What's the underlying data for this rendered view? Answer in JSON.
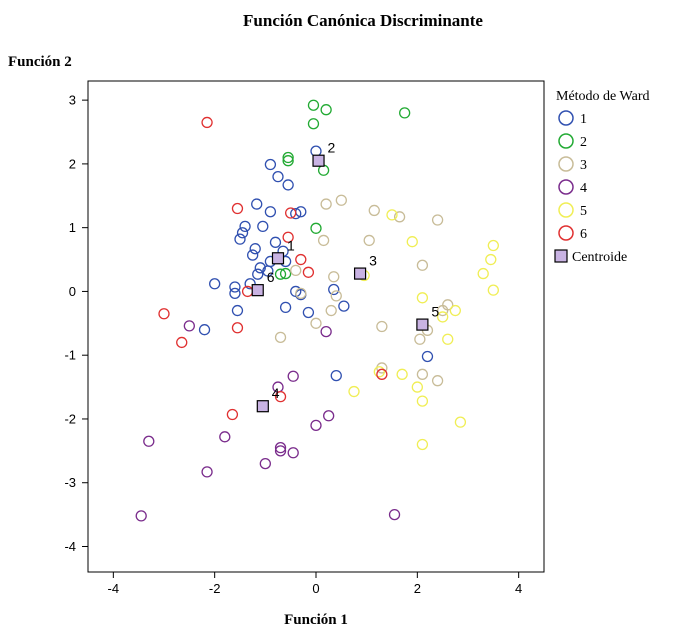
{
  "chart_data": {
    "type": "scatter",
    "title": "Función Canónica  Discriminante",
    "xlabel": "Función 1",
    "ylabel": "Función 2",
    "xlim": [
      -4.5,
      4.5
    ],
    "ylim": [
      -4.4,
      3.3
    ],
    "xticks": [
      -4,
      -2,
      0,
      2,
      4
    ],
    "yticks": [
      3,
      2,
      1,
      0,
      -1,
      -2,
      -3,
      -4
    ],
    "grid": false,
    "legend_title": "Método de Ward",
    "legend_position": "right",
    "series": [
      {
        "name": "1",
        "color": "#3050b0",
        "points": [
          [
            0.0,
            2.2
          ],
          [
            -0.9,
            1.99
          ],
          [
            -0.75,
            1.8
          ],
          [
            -0.55,
            1.67
          ],
          [
            -1.17,
            1.37
          ],
          [
            -0.9,
            1.25
          ],
          [
            -0.3,
            1.25
          ],
          [
            -0.4,
            1.22
          ],
          [
            -1.4,
            1.02
          ],
          [
            -1.05,
            1.02
          ],
          [
            -1.45,
            0.92
          ],
          [
            -1.5,
            0.82
          ],
          [
            -0.8,
            0.77
          ],
          [
            -0.65,
            0.63
          ],
          [
            -1.2,
            0.67
          ],
          [
            -1.25,
            0.57
          ],
          [
            -0.9,
            0.47
          ],
          [
            -0.6,
            0.47
          ],
          [
            -1.1,
            0.37
          ],
          [
            -0.95,
            0.32
          ],
          [
            -1.3,
            0.12
          ],
          [
            -1.15,
            0.27
          ],
          [
            -1.6,
            0.07
          ],
          [
            -1.6,
            -0.03
          ],
          [
            -2.0,
            0.12
          ],
          [
            -0.4,
            0.0
          ],
          [
            -0.3,
            -0.05
          ],
          [
            0.35,
            0.03
          ],
          [
            -0.6,
            -0.25
          ],
          [
            -0.15,
            -0.33
          ],
          [
            -1.55,
            -0.3
          ],
          [
            -2.2,
            -0.6
          ],
          [
            0.55,
            -0.23
          ],
          [
            0.4,
            -1.32
          ],
          [
            2.2,
            -1.02
          ]
        ]
      },
      {
        "name": "2",
        "color": "#22aa33",
        "points": [
          [
            -0.05,
            2.92
          ],
          [
            0.2,
            2.85
          ],
          [
            -0.05,
            2.63
          ],
          [
            1.75,
            2.8
          ],
          [
            -0.55,
            2.1
          ],
          [
            -0.55,
            2.05
          ],
          [
            0.15,
            1.9
          ],
          [
            0.0,
            0.99
          ],
          [
            -0.7,
            0.27
          ],
          [
            -0.6,
            0.28
          ]
        ]
      },
      {
        "name": "3",
        "color": "#c8bc98",
        "points": [
          [
            0.5,
            1.43
          ],
          [
            0.2,
            1.37
          ],
          [
            1.15,
            1.27
          ],
          [
            1.65,
            1.17
          ],
          [
            2.4,
            1.12
          ],
          [
            1.05,
            0.8
          ],
          [
            0.15,
            0.8
          ],
          [
            0.35,
            0.23
          ],
          [
            0.4,
            -0.07
          ],
          [
            0.3,
            -0.3
          ],
          [
            0.0,
            -0.5
          ],
          [
            -0.3,
            -0.03
          ],
          [
            -0.4,
            0.33
          ],
          [
            2.1,
            0.41
          ],
          [
            2.5,
            -0.3
          ],
          [
            1.3,
            -0.55
          ],
          [
            2.6,
            -0.21
          ],
          [
            2.1,
            -1.3
          ],
          [
            2.4,
            -1.4
          ],
          [
            -0.7,
            -0.72
          ],
          [
            2.2,
            -0.61
          ],
          [
            2.05,
            -0.75
          ],
          [
            1.3,
            -1.2
          ]
        ]
      },
      {
        "name": "4",
        "color": "#7a2c8c",
        "points": [
          [
            -2.5,
            -0.54
          ],
          [
            0.2,
            -0.63
          ],
          [
            -0.45,
            -1.33
          ],
          [
            -0.75,
            -1.5
          ],
          [
            0.25,
            -1.95
          ],
          [
            0.0,
            -2.1
          ],
          [
            -1.8,
            -2.28
          ],
          [
            -3.3,
            -2.35
          ],
          [
            -0.7,
            -2.45
          ],
          [
            -0.7,
            -2.5
          ],
          [
            -0.45,
            -2.53
          ],
          [
            -1.0,
            -2.7
          ],
          [
            -2.15,
            -2.83
          ],
          [
            -3.45,
            -3.52
          ],
          [
            1.55,
            -3.5
          ]
        ]
      },
      {
        "name": "5",
        "color": "#f0ee55",
        "points": [
          [
            1.5,
            1.2
          ],
          [
            1.9,
            0.78
          ],
          [
            3.5,
            0.72
          ],
          [
            3.45,
            0.5
          ],
          [
            3.3,
            0.28
          ],
          [
            3.5,
            0.02
          ],
          [
            2.1,
            -0.1
          ],
          [
            2.5,
            -0.4
          ],
          [
            2.6,
            -0.75
          ],
          [
            2.75,
            -0.3
          ],
          [
            1.7,
            -1.3
          ],
          [
            2.0,
            -1.5
          ],
          [
            2.1,
            -1.72
          ],
          [
            0.75,
            -1.57
          ],
          [
            2.85,
            -2.05
          ],
          [
            2.1,
            -2.4
          ],
          [
            0.95,
            0.25
          ],
          [
            1.25,
            -1.26
          ]
        ]
      },
      {
        "name": "6",
        "color": "#e03030",
        "points": [
          [
            -2.15,
            2.65
          ],
          [
            -1.55,
            1.3
          ],
          [
            -0.5,
            1.23
          ],
          [
            -0.55,
            0.85
          ],
          [
            -0.3,
            0.5
          ],
          [
            -0.15,
            0.3
          ],
          [
            -1.35,
            0.0
          ],
          [
            -3.0,
            -0.35
          ],
          [
            -2.65,
            -0.8
          ],
          [
            -1.55,
            -0.57
          ],
          [
            -1.65,
            -1.93
          ],
          [
            -0.7,
            -1.65
          ],
          [
            1.3,
            -1.3
          ]
        ]
      }
    ],
    "centroids": {
      "name": "Centroide",
      "color": "#c9b3e3",
      "points": [
        {
          "label": "1",
          "x": -0.75,
          "y": 0.52
        },
        {
          "label": "2",
          "x": 0.05,
          "y": 2.05
        },
        {
          "label": "3",
          "x": 0.87,
          "y": 0.28
        },
        {
          "label": "4",
          "x": -1.05,
          "y": -1.8
        },
        {
          "label": "5",
          "x": 2.1,
          "y": -0.52
        },
        {
          "label": "6",
          "x": -1.15,
          "y": 0.02
        }
      ]
    }
  }
}
